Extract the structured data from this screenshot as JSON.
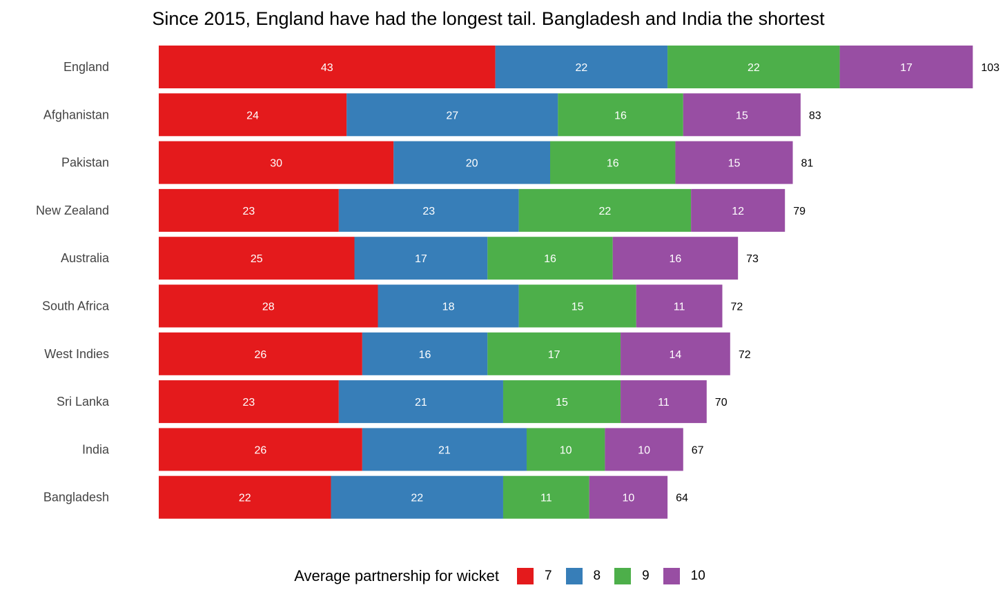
{
  "chart_data": {
    "type": "bar",
    "orientation": "horizontal",
    "stacked": true,
    "title": "Since 2015, England have had the longest tail. Bangladesh and India the shortest",
    "categories": [
      "England",
      "Afghanistan",
      "Pakistan",
      "New Zealand",
      "Australia",
      "South Africa",
      "West Indies",
      "Sri Lanka",
      "India",
      "Bangladesh"
    ],
    "series": [
      {
        "name": "7",
        "color": "#E41A1C",
        "values": [
          43,
          24,
          30,
          23,
          25,
          28,
          26,
          23,
          26,
          22
        ]
      },
      {
        "name": "8",
        "color": "#377EB8",
        "values": [
          22,
          27,
          20,
          23,
          17,
          18,
          16,
          21,
          21,
          22
        ]
      },
      {
        "name": "9",
        "color": "#4DAF4A",
        "values": [
          22,
          16,
          16,
          22,
          16,
          15,
          17,
          15,
          10,
          11
        ]
      },
      {
        "name": "10",
        "color": "#984EA3",
        "values": [
          17,
          15,
          15,
          12,
          16,
          11,
          14,
          11,
          10,
          10
        ]
      }
    ],
    "totals": [
      103,
      83,
      81,
      79,
      73,
      72,
      72,
      70,
      67,
      64
    ],
    "legend_title": "Average partnership for wicket",
    "legend_position": "bottom",
    "grid": false
  }
}
